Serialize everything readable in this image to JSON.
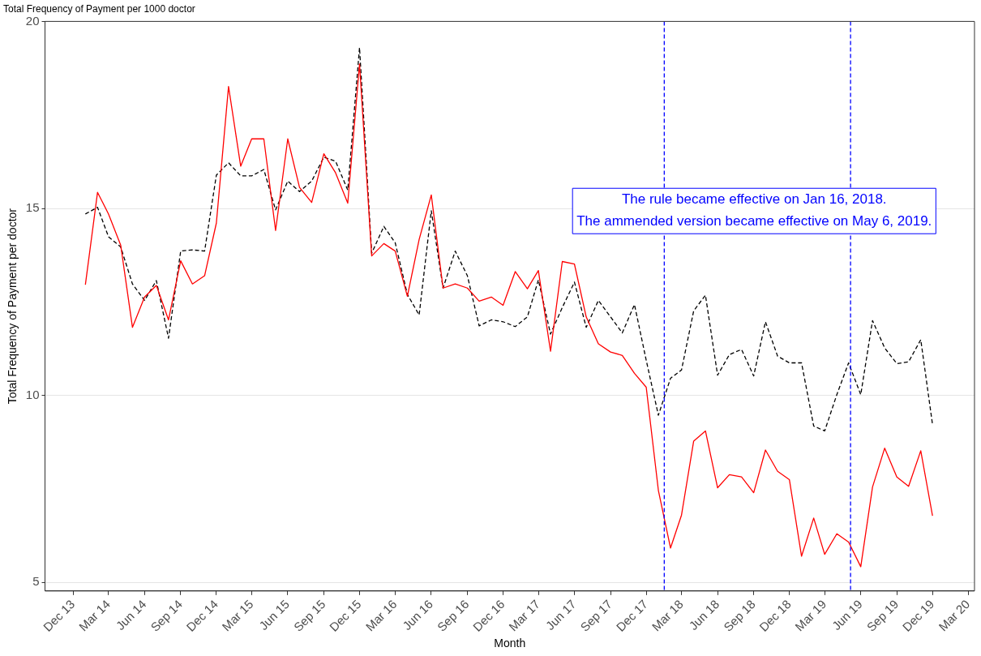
{
  "chart_data": {
    "type": "line",
    "title": "Total Frequency of Payment per 1000 doctor",
    "xlabel": "Month",
    "ylabel": "Total Frequency of Payment per doctor",
    "x": [
      "2014-01",
      "2014-02",
      "2014-03",
      "2014-04",
      "2014-05",
      "2014-06",
      "2014-07",
      "2014-08",
      "2014-09",
      "2014-10",
      "2014-11",
      "2014-12",
      "2015-01",
      "2015-02",
      "2015-03",
      "2015-04",
      "2015-05",
      "2015-06",
      "2015-07",
      "2015-08",
      "2015-09",
      "2015-10",
      "2015-11",
      "2015-12",
      "2016-01",
      "2016-02",
      "2016-03",
      "2016-04",
      "2016-05",
      "2016-06",
      "2016-07",
      "2016-08",
      "2016-09",
      "2016-10",
      "2016-11",
      "2016-12",
      "2017-01",
      "2017-02",
      "2017-03",
      "2017-04",
      "2017-05",
      "2017-06",
      "2017-07",
      "2017-08",
      "2017-09",
      "2017-10",
      "2017-11",
      "2017-12",
      "2018-01",
      "2018-02",
      "2018-03",
      "2018-04",
      "2018-05",
      "2018-06",
      "2018-07",
      "2018-08",
      "2018-09",
      "2018-10",
      "2018-11",
      "2018-12",
      "2019-01",
      "2019-02",
      "2019-03",
      "2019-04",
      "2019-05",
      "2019-06",
      "2019-07",
      "2019-08",
      "2019-09",
      "2019-10",
      "2019-11",
      "2019-12"
    ],
    "series": [
      {
        "color": "#ff0000",
        "line_style": "solid",
        "values": [
          12.96,
          15.43,
          14.85,
          14.02,
          11.82,
          12.63,
          12.94,
          12.02,
          13.6,
          12.98,
          13.2,
          14.61,
          18.26,
          16.13,
          16.86,
          16.86,
          14.41,
          16.86,
          15.56,
          15.16,
          16.46,
          15.95,
          15.14,
          18.86,
          13.73,
          14.06,
          13.86,
          12.65,
          14.17,
          15.36,
          12.87,
          12.98,
          12.87,
          12.52,
          12.63,
          12.41,
          13.31,
          12.85,
          13.34,
          11.18,
          13.58,
          13.51,
          12.1,
          11.38,
          11.16,
          11.07,
          10.59,
          10.22,
          7.46,
          5.92,
          6.8,
          8.78,
          9.05,
          7.53,
          7.88,
          7.82,
          7.4,
          8.54,
          7.97,
          7.75,
          5.7,
          6.72,
          5.75,
          6.3,
          6.08,
          5.42,
          7.55,
          8.59,
          7.82,
          7.57,
          8.52,
          6.78
        ]
      },
      {
        "color": "#000000",
        "line_style": "dashed",
        "values": [
          14.85,
          15.03,
          14.24,
          13.97,
          12.98,
          12.54,
          13.07,
          11.53,
          13.86,
          13.89,
          13.86,
          15.89,
          16.22,
          15.87,
          15.87,
          16.04,
          14.96,
          15.73,
          15.45,
          15.73,
          16.37,
          16.26,
          15.49,
          19.3,
          13.8,
          14.52,
          14.08,
          12.7,
          12.15,
          14.94,
          12.87,
          13.86,
          13.2,
          11.86,
          12.02,
          11.97,
          11.84,
          12.1,
          13.09,
          11.64,
          12.35,
          13.03,
          11.82,
          12.54,
          12.1,
          11.67,
          12.43,
          10.94,
          9.47,
          10.46,
          10.68,
          12.26,
          12.68,
          10.54,
          11.09,
          11.23,
          10.52,
          11.97,
          11.05,
          10.87,
          10.87,
          9.18,
          9.05,
          10.02,
          10.87,
          10.02,
          12.0,
          11.27,
          10.85,
          10.9,
          11.49,
          9.22
        ]
      }
    ],
    "xlim": [
      "2013-09-20",
      "2020-03-17"
    ],
    "xticks": [
      {
        "value": "2013-12",
        "label": "Dec 13"
      },
      {
        "value": "2014-03",
        "label": "Mar 14"
      },
      {
        "value": "2014-06",
        "label": "Jun 14"
      },
      {
        "value": "2014-09",
        "label": "Sep 14"
      },
      {
        "value": "2014-12",
        "label": "Dec 14"
      },
      {
        "value": "2015-03",
        "label": "Mar 15"
      },
      {
        "value": "2015-06",
        "label": "Jun 15"
      },
      {
        "value": "2015-09",
        "label": "Sep 15"
      },
      {
        "value": "2015-12",
        "label": "Dec 15"
      },
      {
        "value": "2016-03",
        "label": "Mar 16"
      },
      {
        "value": "2016-06",
        "label": "Jun 16"
      },
      {
        "value": "2016-09",
        "label": "Sep 16"
      },
      {
        "value": "2016-12",
        "label": "Dec 16"
      },
      {
        "value": "2017-03",
        "label": "Mar 17"
      },
      {
        "value": "2017-06",
        "label": "Jun 17"
      },
      {
        "value": "2017-09",
        "label": "Sep 17"
      },
      {
        "value": "2017-12",
        "label": "Dec 17"
      },
      {
        "value": "2018-03",
        "label": "Mar 18"
      },
      {
        "value": "2018-06",
        "label": "Jun 18"
      },
      {
        "value": "2018-09",
        "label": "Sep 18"
      },
      {
        "value": "2018-12",
        "label": "Dec 18"
      },
      {
        "value": "2019-03",
        "label": "Mar 19"
      },
      {
        "value": "2019-06",
        "label": "Jun 19"
      },
      {
        "value": "2019-09",
        "label": "Sep 19"
      },
      {
        "value": "2019-12",
        "label": "Dec 19"
      },
      {
        "value": "2020-03",
        "label": "Mar 20"
      }
    ],
    "ylim": [
      4.77,
      20
    ],
    "yticks": [
      5,
      10,
      15,
      20
    ],
    "grid": "y",
    "legend": false,
    "marker": "none",
    "ref_lines": [
      {
        "axis": "x",
        "value": "2018-01-16",
        "color": "#0000ff",
        "line_style": "dashed"
      },
      {
        "axis": "x",
        "value": "2019-05-06",
        "color": "#0000ff",
        "line_style": "dashed"
      }
    ],
    "annotations": [
      "The rule became effective on Jan 16, 2018.",
      "The ammended version became effective on May 6, 2019."
    ]
  }
}
